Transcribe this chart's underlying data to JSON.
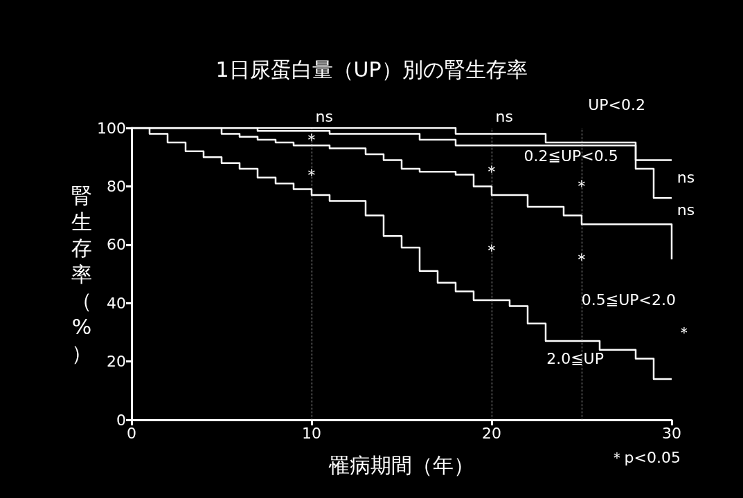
{
  "chart_data": {
    "type": "step",
    "title": "1日尿蛋白量（UP）別の腎生存率",
    "xlabel": "罹病期間（年）",
    "ylabel": "腎生存率（%）",
    "xlim": [
      0,
      30
    ],
    "xticks": [
      0,
      10,
      20,
      30
    ],
    "ylim": [
      0,
      100
    ],
    "yticks": [
      0,
      20,
      40,
      60,
      80,
      100
    ],
    "grid": false,
    "legend": false,
    "series": [
      {
        "name": "UP<0.2",
        "color": "#ffffff",
        "x": [
          0,
          18,
          23,
          28,
          30
        ],
        "values": [
          100,
          98,
          95,
          89,
          89
        ]
      },
      {
        "name": "0.2≦UP<0.5",
        "color": "#ffffff",
        "x": [
          0,
          7,
          11,
          16,
          18,
          28,
          29,
          30
        ],
        "values": [
          100,
          99,
          98,
          96,
          94,
          86,
          76,
          76
        ]
      },
      {
        "name": "0.5≦UP<2.0",
        "color": "#ffffff",
        "x": [
          0,
          5,
          6,
          7,
          8,
          9,
          11,
          13,
          14,
          15,
          16,
          18,
          19,
          20,
          22,
          24,
          25,
          30,
          30
        ],
        "values": [
          100,
          98,
          97,
          96,
          95,
          94,
          93,
          91,
          89,
          86,
          85,
          84,
          80,
          77,
          73,
          70,
          67,
          67,
          55
        ]
      },
      {
        "name": "2.0≦UP",
        "color": "#ffffff",
        "x": [
          0,
          1,
          2,
          3,
          4,
          5,
          6,
          7,
          8,
          9,
          10,
          11,
          13,
          14,
          15,
          16,
          17,
          18,
          19,
          21,
          22,
          23,
          26,
          28,
          29,
          30
        ],
        "values": [
          100,
          98,
          95,
          92,
          90,
          88,
          86,
          83,
          81,
          79,
          77,
          75,
          70,
          63,
          59,
          51,
          47,
          44,
          41,
          39,
          33,
          27,
          24,
          21,
          14,
          14
        ]
      }
    ],
    "ref_lines": [
      {
        "axis": "x",
        "value": 10,
        "line_style": "dotted",
        "color": "#bbbbbb"
      },
      {
        "axis": "x",
        "value": 20,
        "line_style": "dotted",
        "color": "#bbbbbb"
      },
      {
        "axis": "x",
        "value": 25,
        "line_style": "dotted",
        "color": "#bbbbbb"
      }
    ],
    "annotations": [
      "ns",
      "ns",
      "ns",
      "ns",
      {
        "text": "＊",
        "x": 10,
        "y": 96
      },
      {
        "text": "＊",
        "x": 10,
        "y": 84
      },
      {
        "text": "＊",
        "x": 20,
        "y": 85
      },
      {
        "text": "＊",
        "x": 25,
        "y": 80
      },
      {
        "text": "＊",
        "x": 20,
        "y": 58
      },
      {
        "text": "＊",
        "x": 25,
        "y": 55
      },
      "＊",
      "＊p<0.05"
    ]
  }
}
